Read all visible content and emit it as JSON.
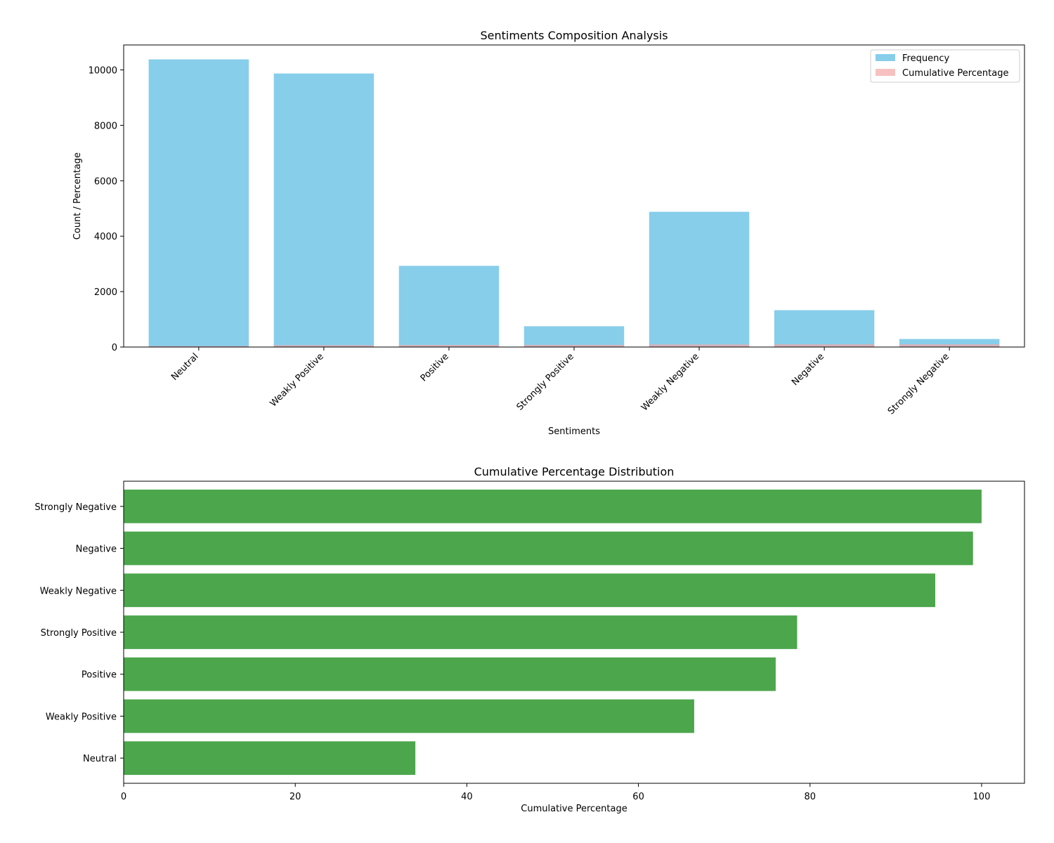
{
  "chart_data": [
    {
      "type": "bar",
      "title": "Sentiments Composition Analysis",
      "xlabel": "Sentiments",
      "ylabel": "Count / Percentage",
      "ylim": [
        0,
        10900
      ],
      "yticks": [
        0,
        2000,
        4000,
        6000,
        8000,
        10000
      ],
      "categories": [
        "Neutral",
        "Weakly Positive",
        "Positive",
        "Strongly Positive",
        "Weakly Negative",
        "Negative",
        "Strongly Negative"
      ],
      "series": [
        {
          "name": "Frequency",
          "color": "#87ceeb",
          "values": [
            10380,
            9870,
            2930,
            750,
            4880,
            1330,
            290
          ]
        },
        {
          "name": "Cumulative Percentage",
          "color": "#f4a6a6",
          "values": [
            34.0,
            66.5,
            76.0,
            78.5,
            94.6,
            99.0,
            100.0
          ]
        }
      ],
      "legend_position": "top-right"
    },
    {
      "type": "barh",
      "title": "Cumulative Percentage Distribution",
      "xlabel": "Cumulative Percentage",
      "ylabel": "",
      "xlim": [
        0,
        105
      ],
      "xticks": [
        0,
        20,
        40,
        60,
        80,
        100
      ],
      "categories": [
        "Neutral",
        "Weakly Positive",
        "Positive",
        "Strongly Positive",
        "Weakly Negative",
        "Negative",
        "Strongly Negative"
      ],
      "values": [
        34.0,
        66.5,
        76.0,
        78.5,
        94.6,
        99.0,
        100.0
      ],
      "color": "#4ca64c"
    }
  ]
}
